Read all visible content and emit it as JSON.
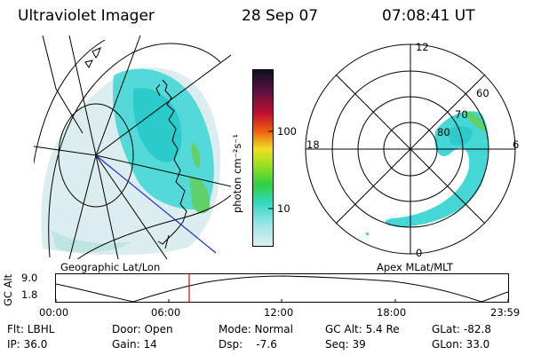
{
  "header": {
    "instrument": "Ultraviolet Imager",
    "date": "28 Sep 07",
    "time": "07:08:41 UT"
  },
  "colorbar": {
    "label": "photon cm⁻²s⁻¹",
    "ticks": [
      "100",
      "10"
    ]
  },
  "left_map": {
    "label": "Geographic Lat/Lon"
  },
  "right_map": {
    "label": "Apex MLat/MLT",
    "mlt_labels": {
      "top": "12",
      "bottom": "0",
      "left": "18",
      "right": "6"
    },
    "lat_labels": [
      "60",
      "70",
      "80"
    ]
  },
  "altitude_plot": {
    "ylabel": "GC Alt",
    "yticks": [
      "9.0",
      "1.8"
    ],
    "xticks": [
      "00:00",
      "06:00",
      "12:00",
      "18:00",
      "23:59"
    ],
    "current_time_marker": "07:08:41",
    "colors": {
      "marker": "#e00000",
      "curve": "#000000"
    }
  },
  "info": {
    "row1": [
      "Flt: LBHL",
      "Door: Open",
      "Mode: Normal",
      "GC Alt: 5.4 Re",
      "GLat: -82.8"
    ],
    "row2": [
      "IP: 36.0",
      "Gain: 14",
      "Dsp:    -7.6",
      "Seq: 39",
      "GLon: 33.0"
    ]
  },
  "colors": {
    "auroral_cyan": "#3fd9d9",
    "auroral_green": "#60d060",
    "faint_noise": "#cfe7ea"
  }
}
